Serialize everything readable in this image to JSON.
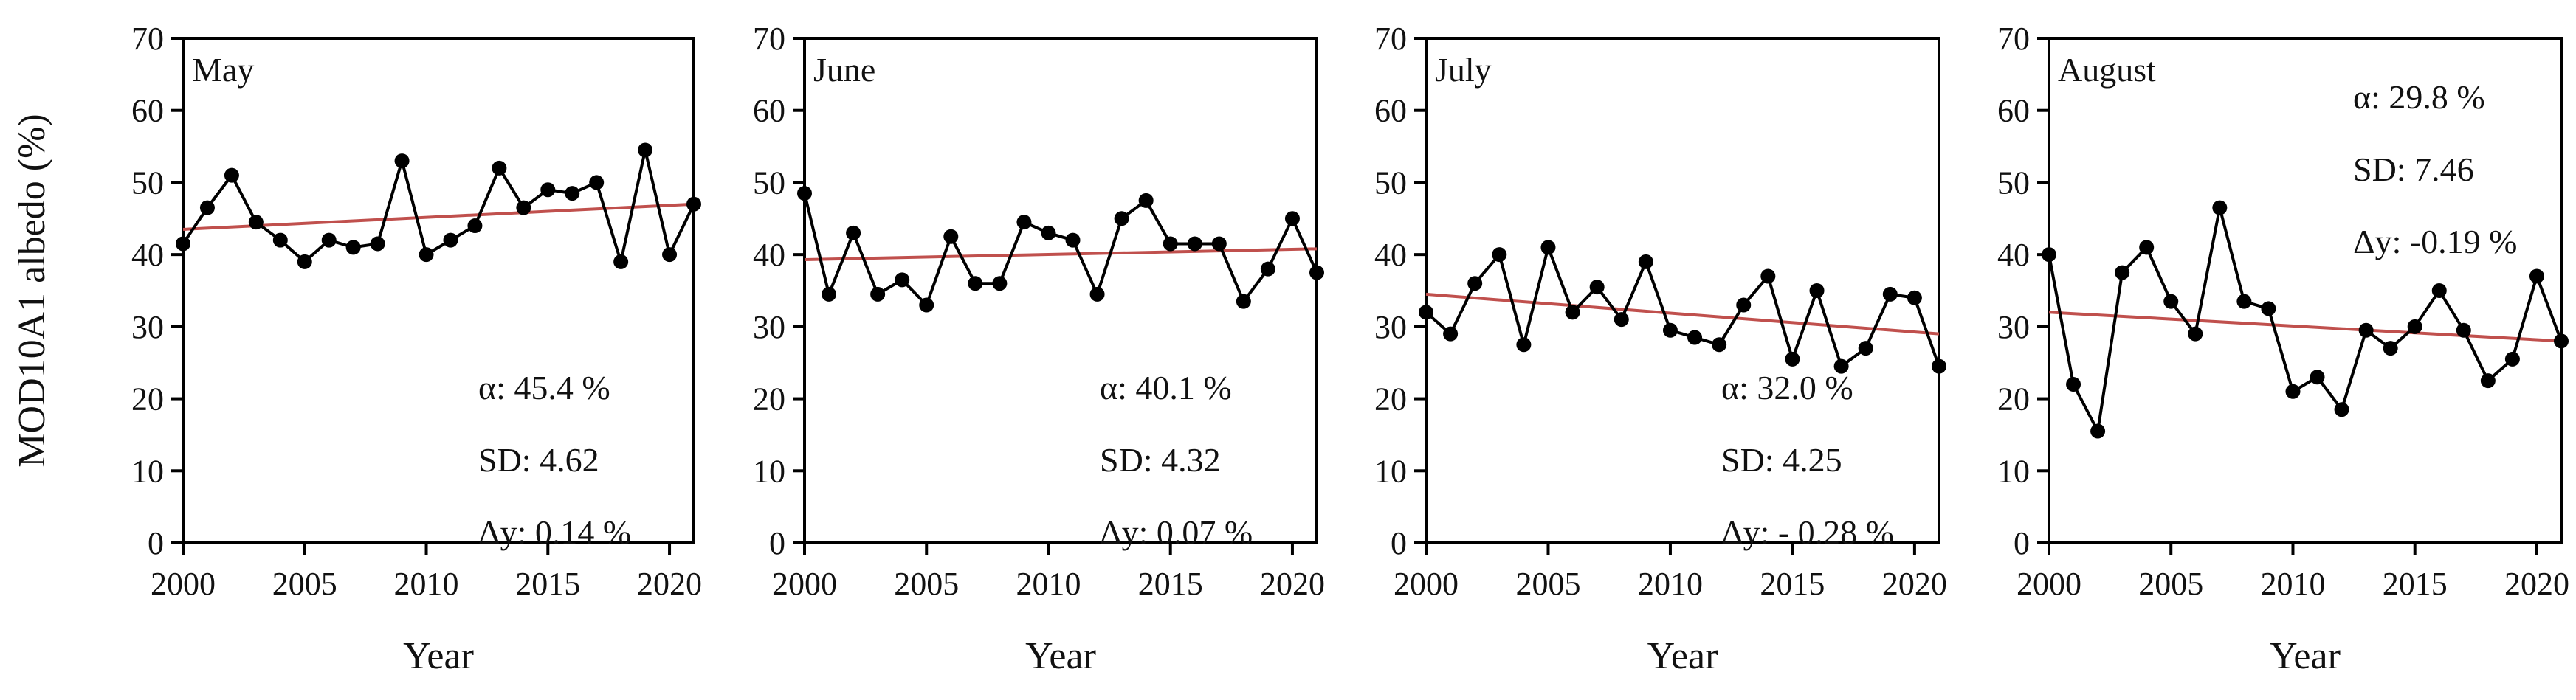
{
  "figure": {
    "ylabel": "MOD10A1 albedo (%)",
    "colors": {
      "data": "#000000",
      "trend": "#c0504d",
      "frame": "#000000"
    }
  },
  "chart_data": [
    {
      "type": "line",
      "title": "May",
      "xlabel": "Year",
      "ylabel": "MOD10A1 albedo (%)",
      "xlim": [
        2000,
        2021
      ],
      "ylim": [
        0,
        70
      ],
      "xticks": [
        "2000",
        "2005",
        "2010",
        "2015",
        "2020"
      ],
      "yticks": [
        "0",
        "10",
        "20",
        "30",
        "40",
        "50",
        "60",
        "70"
      ],
      "x": [
        2000,
        2001,
        2002,
        2003,
        2004,
        2005,
        2006,
        2007,
        2008,
        2009,
        2010,
        2011,
        2012,
        2013,
        2014,
        2015,
        2016,
        2017,
        2018,
        2019,
        2020,
        2021
      ],
      "values": [
        41.5,
        46.5,
        51.0,
        44.5,
        42.0,
        39.0,
        42.0,
        41.0,
        41.5,
        53.0,
        40.0,
        42.0,
        44.0,
        52.0,
        46.5,
        49.0,
        48.5,
        50.0,
        39.0,
        54.5,
        40.0,
        47.0
      ],
      "trend": [
        43.5,
        47.0
      ],
      "stats": [
        "α: 45.4 %",
        "SD: 4.62",
        "Δy: 0.14 %"
      ],
      "stats_position": "bottom-right"
    },
    {
      "type": "line",
      "title": "June",
      "xlabel": "Year",
      "ylabel": "",
      "xlim": [
        2000,
        2021
      ],
      "ylim": [
        0,
        70
      ],
      "xticks": [
        "2000",
        "2005",
        "2010",
        "2015",
        "2020"
      ],
      "yticks": [
        "0",
        "10",
        "20",
        "30",
        "40",
        "50",
        "60",
        "70"
      ],
      "x": [
        2000,
        2001,
        2002,
        2003,
        2004,
        2005,
        2006,
        2007,
        2008,
        2009,
        2010,
        2011,
        2012,
        2013,
        2014,
        2015,
        2016,
        2017,
        2018,
        2019,
        2020,
        2021
      ],
      "values": [
        48.5,
        34.5,
        43.0,
        34.5,
        36.5,
        33.0,
        42.5,
        36.0,
        36.0,
        44.5,
        43.0,
        42.0,
        34.5,
        45.0,
        47.5,
        41.5,
        41.5,
        41.5,
        33.5,
        38.0,
        45.0,
        37.5
      ],
      "trend": [
        39.3,
        40.8
      ],
      "stats": [
        "α: 40.1 %",
        "SD: 4.32",
        "Δy: 0.07 %"
      ],
      "stats_position": "bottom-right"
    },
    {
      "type": "line",
      "title": "July",
      "xlabel": "Year",
      "ylabel": "",
      "xlim": [
        2000,
        2021
      ],
      "ylim": [
        0,
        70
      ],
      "xticks": [
        "2000",
        "2005",
        "2010",
        "2015",
        "2020"
      ],
      "yticks": [
        "0",
        "10",
        "20",
        "30",
        "40",
        "50",
        "60",
        "70"
      ],
      "x": [
        2000,
        2001,
        2002,
        2003,
        2004,
        2005,
        2006,
        2007,
        2008,
        2009,
        2010,
        2011,
        2012,
        2013,
        2014,
        2015,
        2016,
        2017,
        2018,
        2019,
        2020,
        2021
      ],
      "values": [
        32.0,
        29.0,
        36.0,
        40.0,
        27.5,
        41.0,
        32.0,
        35.5,
        31.0,
        39.0,
        29.5,
        28.5,
        27.5,
        33.0,
        37.0,
        25.5,
        35.0,
        24.5,
        27.0,
        34.5,
        34.0,
        24.5
      ],
      "trend": [
        34.5,
        29.0
      ],
      "stats": [
        "α: 32.0 %",
        "SD: 4.25",
        "Δy: - 0.28 %"
      ],
      "stats_position": "bottom-right"
    },
    {
      "type": "line",
      "title": "August",
      "xlabel": "Year",
      "ylabel": "",
      "xlim": [
        2000,
        2021
      ],
      "ylim": [
        0,
        70
      ],
      "xticks": [
        "2000",
        "2005",
        "2010",
        "2015",
        "2020"
      ],
      "yticks": [
        "0",
        "10",
        "20",
        "30",
        "40",
        "50",
        "60",
        "70"
      ],
      "x": [
        2000,
        2001,
        2002,
        2003,
        2004,
        2005,
        2006,
        2007,
        2008,
        2009,
        2010,
        2011,
        2012,
        2013,
        2014,
        2015,
        2016,
        2017,
        2018,
        2019,
        2020,
        2021
      ],
      "values": [
        40.0,
        22.0,
        15.5,
        37.5,
        41.0,
        33.5,
        29.0,
        46.5,
        33.5,
        32.5,
        21.0,
        23.0,
        18.5,
        29.5,
        27.0,
        30.0,
        35.0,
        29.5,
        22.5,
        25.5,
        37.0,
        28.0
      ],
      "trend": [
        32.0,
        28.0
      ],
      "stats": [
        "α: 29.8 %",
        "SD: 7.46",
        "Δy: -0.19 %"
      ],
      "stats_position": "top-right"
    }
  ]
}
